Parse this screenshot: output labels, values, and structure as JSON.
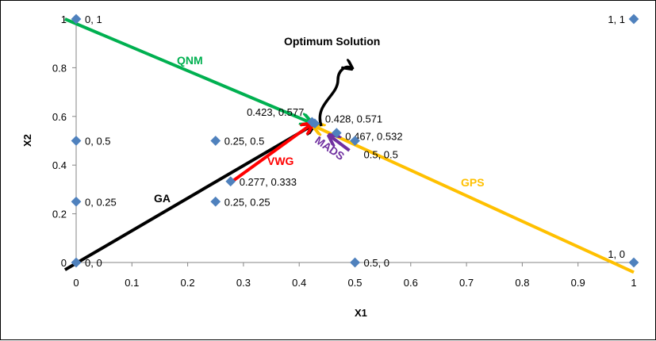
{
  "chart_data": {
    "type": "scatter",
    "xlabel": "X1",
    "ylabel": "X2",
    "xlim": [
      0,
      1
    ],
    "ylim": [
      0,
      1
    ],
    "xticks": [
      "0",
      "0.1",
      "0.2",
      "0.3",
      "0.4",
      "0.5",
      "0.6",
      "0.7",
      "0.8",
      "0.9",
      "1"
    ],
    "yticks": [
      "0",
      "0.2",
      "0.4",
      "0.6",
      "0.8",
      "1"
    ],
    "grid": false,
    "marker_color": "#4F81BD",
    "points": [
      {
        "x": 0,
        "y": 1,
        "label": "0, 1"
      },
      {
        "x": 1,
        "y": 1,
        "label": "1, 1"
      },
      {
        "x": 0,
        "y": 0.5,
        "label": "0, 0.5"
      },
      {
        "x": 0.25,
        "y": 0.5,
        "label": "0.25, 0.5"
      },
      {
        "x": 0,
        "y": 0.25,
        "label": "0, 0.25"
      },
      {
        "x": 0.25,
        "y": 0.25,
        "label": "0.25, 0.25"
      },
      {
        "x": 0.277,
        "y": 0.333,
        "label": "0.277, 0.333"
      },
      {
        "x": 0.423,
        "y": 0.577,
        "label": "0.423, 0.577"
      },
      {
        "x": 0.428,
        "y": 0.571,
        "label": "0.428, 0.571"
      },
      {
        "x": 0.467,
        "y": 0.532,
        "label": "0.467, 0.532"
      },
      {
        "x": 0.5,
        "y": 0.5,
        "label": "0.5, 0.5"
      },
      {
        "x": 0,
        "y": 0,
        "label": "0, 0"
      },
      {
        "x": 0.5,
        "y": 0,
        "label": "0.5, 0"
      },
      {
        "x": 1,
        "y": 0,
        "label": "1, 0"
      }
    ],
    "annotations": [
      {
        "text": "QNM",
        "color": "#00B050",
        "from": [
          -0.02,
          1.0
        ],
        "to": [
          0.42,
          0.575
        ]
      },
      {
        "text": "GA",
        "color": "#000000",
        "from": [
          -0.02,
          -0.03
        ],
        "to": [
          0.425,
          0.565
        ]
      },
      {
        "text": "GPS",
        "color": "#FFC000",
        "from": [
          1.0,
          -0.04
        ],
        "to": [
          0.427,
          0.56
        ]
      },
      {
        "text": "VWG",
        "color": "#FF0000",
        "from": [
          0.275,
          0.325
        ],
        "to": [
          0.422,
          0.568
        ]
      },
      {
        "text": "MADS",
        "color": "#7030A0",
        "from": [
          0.49,
          0.46
        ],
        "to": [
          0.455,
          0.52
        ]
      },
      {
        "text": "Optimum Solution",
        "color": "#000000"
      }
    ]
  }
}
